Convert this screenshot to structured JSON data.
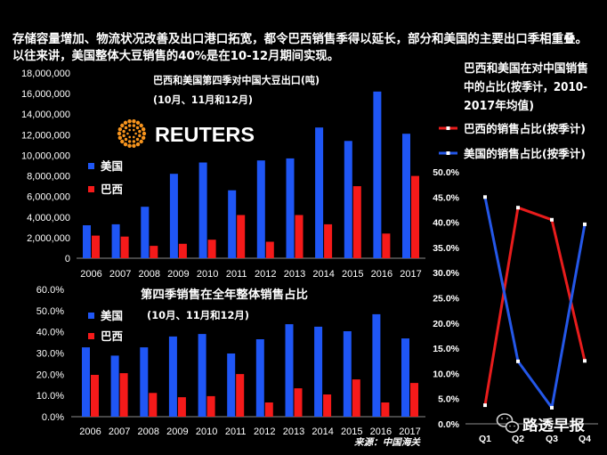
{
  "header": {
    "lines": [
      "存储容量增加、物流状况改善及出口港口拓宽，都令巴西销售季得以延长，部分和美国的主要出口季相重叠。",
      "以往来讲，美国整体大豆销售的40%是在10-12月期间实现。"
    ]
  },
  "brand": {
    "logo_text": "REUTERS",
    "icon": "reuters-dot-logo-icon",
    "color": "#f7941d"
  },
  "source": "来源：中国海关",
  "watermark": {
    "text": "路透早报",
    "icon": "wechat-icon"
  },
  "chart_data": [
    {
      "type": "bar",
      "title": "巴西和美国第四季对中国大豆出口(吨)",
      "subtitle": "(10月、11月和12月)",
      "categories": [
        "2006",
        "2007",
        "2008",
        "2009",
        "2010",
        "2011",
        "2012",
        "2013",
        "2014",
        "2015",
        "2016",
        "2017"
      ],
      "series": [
        {
          "name": "美国",
          "color": "#1f56f5",
          "values": [
            3200000,
            3300000,
            5000000,
            8200000,
            9300000,
            6600000,
            9500000,
            9700000,
            12700000,
            11400000,
            16200000,
            12100000
          ]
        },
        {
          "name": "巴西",
          "color": "#f51a1a",
          "values": [
            2200000,
            2100000,
            1200000,
            1400000,
            1800000,
            4200000,
            1600000,
            4200000,
            3300000,
            7000000,
            2400000,
            8000000
          ]
        }
      ],
      "ylim": [
        0,
        18000000
      ],
      "yticks": [
        0,
        2000000,
        4000000,
        6000000,
        8000000,
        10000000,
        12000000,
        14000000,
        16000000,
        18000000
      ],
      "ytick_labels": [
        "0",
        "2,000,000",
        "4,000,000",
        "6,000,000",
        "8,000,000",
        "10,000,000",
        "12,000,000",
        "14,000,000",
        "16,000,000",
        "18,000,000"
      ],
      "grid": false,
      "legend": "left"
    },
    {
      "type": "bar",
      "title": "第四季销售在全年整体销售占比",
      "subtitle": "(10月、11月和12月)",
      "categories": [
        "2006",
        "2007",
        "2008",
        "2009",
        "2010",
        "2011",
        "2012",
        "2013",
        "2014",
        "2015",
        "2016",
        "2017"
      ],
      "series": [
        {
          "name": "美国",
          "color": "#1f56f5",
          "values": [
            32.7,
            28.8,
            32.7,
            37.8,
            39.0,
            29.8,
            36.5,
            43.6,
            42.4,
            40.3,
            48.3,
            36.9
          ]
        },
        {
          "name": "巴西",
          "color": "#f51a1a",
          "values": [
            19.7,
            20.5,
            11.2,
            9.2,
            9.7,
            20.1,
            6.7,
            13.4,
            10.5,
            17.6,
            6.7,
            15.9
          ]
        }
      ],
      "ylim": [
        0,
        60
      ],
      "yticks": [
        0,
        10,
        20,
        30,
        40,
        50,
        60
      ],
      "ytick_labels": [
        "0.0%",
        "10.0%",
        "20.0%",
        "30.0%",
        "40.0%",
        "50.0%",
        "60.0%"
      ],
      "grid": false,
      "legend": "left"
    },
    {
      "type": "line",
      "title_lines": [
        "巴西和美国在对中国销售",
        "中的占比(按季计，2010-",
        "2017年均值)"
      ],
      "categories": [
        "Q1",
        "Q2",
        "Q3",
        "Q4"
      ],
      "series": [
        {
          "name": "巴西的销售占比(按季计)",
          "color": "#e81c1c",
          "values": [
            3.7,
            42.9,
            40.5,
            12.5
          ]
        },
        {
          "name": "美国的销售占比(按季计)",
          "color": "#2457e8",
          "values": [
            45.0,
            12.4,
            3.2,
            39.6
          ]
        }
      ],
      "ylim": [
        0,
        50
      ],
      "yticks": [
        0,
        5,
        10,
        15,
        20,
        25,
        30,
        35,
        40,
        45,
        50
      ],
      "ytick_labels": [
        "0.0%",
        "5.0%",
        "10.0%",
        "15.0%",
        "20.0%",
        "25.0%",
        "30.0%",
        "35.0%",
        "40.0%",
        "45.0%",
        "50.0%"
      ],
      "grid": false,
      "legend": "top"
    }
  ]
}
